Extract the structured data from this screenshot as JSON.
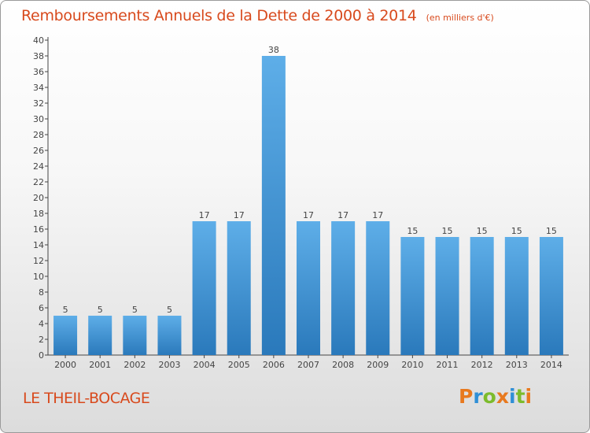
{
  "header": {
    "title": "Remboursements Annuels de la Dette de 2000 à 2014",
    "subtitle": "(en milliers d'€)"
  },
  "footer": {
    "commune": "LE THEIL-BOCAGE",
    "logo_text": "Proxiti"
  },
  "colors": {
    "title": "#d84a1d",
    "bar_light": "#5eaee8",
    "bar_dark": "#2a79bb",
    "logo_letters": [
      "#e8791e",
      "#2f8fd6",
      "#7cbb2c",
      "#e8791e",
      "#2f8fd6",
      "#7cbb2c",
      "#e8791e"
    ]
  },
  "chart_data": {
    "type": "bar",
    "title": "Remboursements Annuels de la Dette de 2000 à 2014",
    "subtitle": "(en milliers d'€)",
    "categories": [
      "2000",
      "2001",
      "2002",
      "2003",
      "2004",
      "2005",
      "2006",
      "2007",
      "2008",
      "2009",
      "2010",
      "2011",
      "2012",
      "2013",
      "2014"
    ],
    "values": [
      5,
      5,
      5,
      5,
      17,
      17,
      38,
      17,
      17,
      17,
      15,
      15,
      15,
      15,
      15
    ],
    "ylim": [
      0,
      40
    ],
    "yticks": [
      0,
      2,
      4,
      6,
      8,
      10,
      12,
      14,
      16,
      18,
      20,
      22,
      24,
      26,
      28,
      30,
      32,
      34,
      36,
      38,
      40
    ],
    "grid": false,
    "legend": "none"
  }
}
